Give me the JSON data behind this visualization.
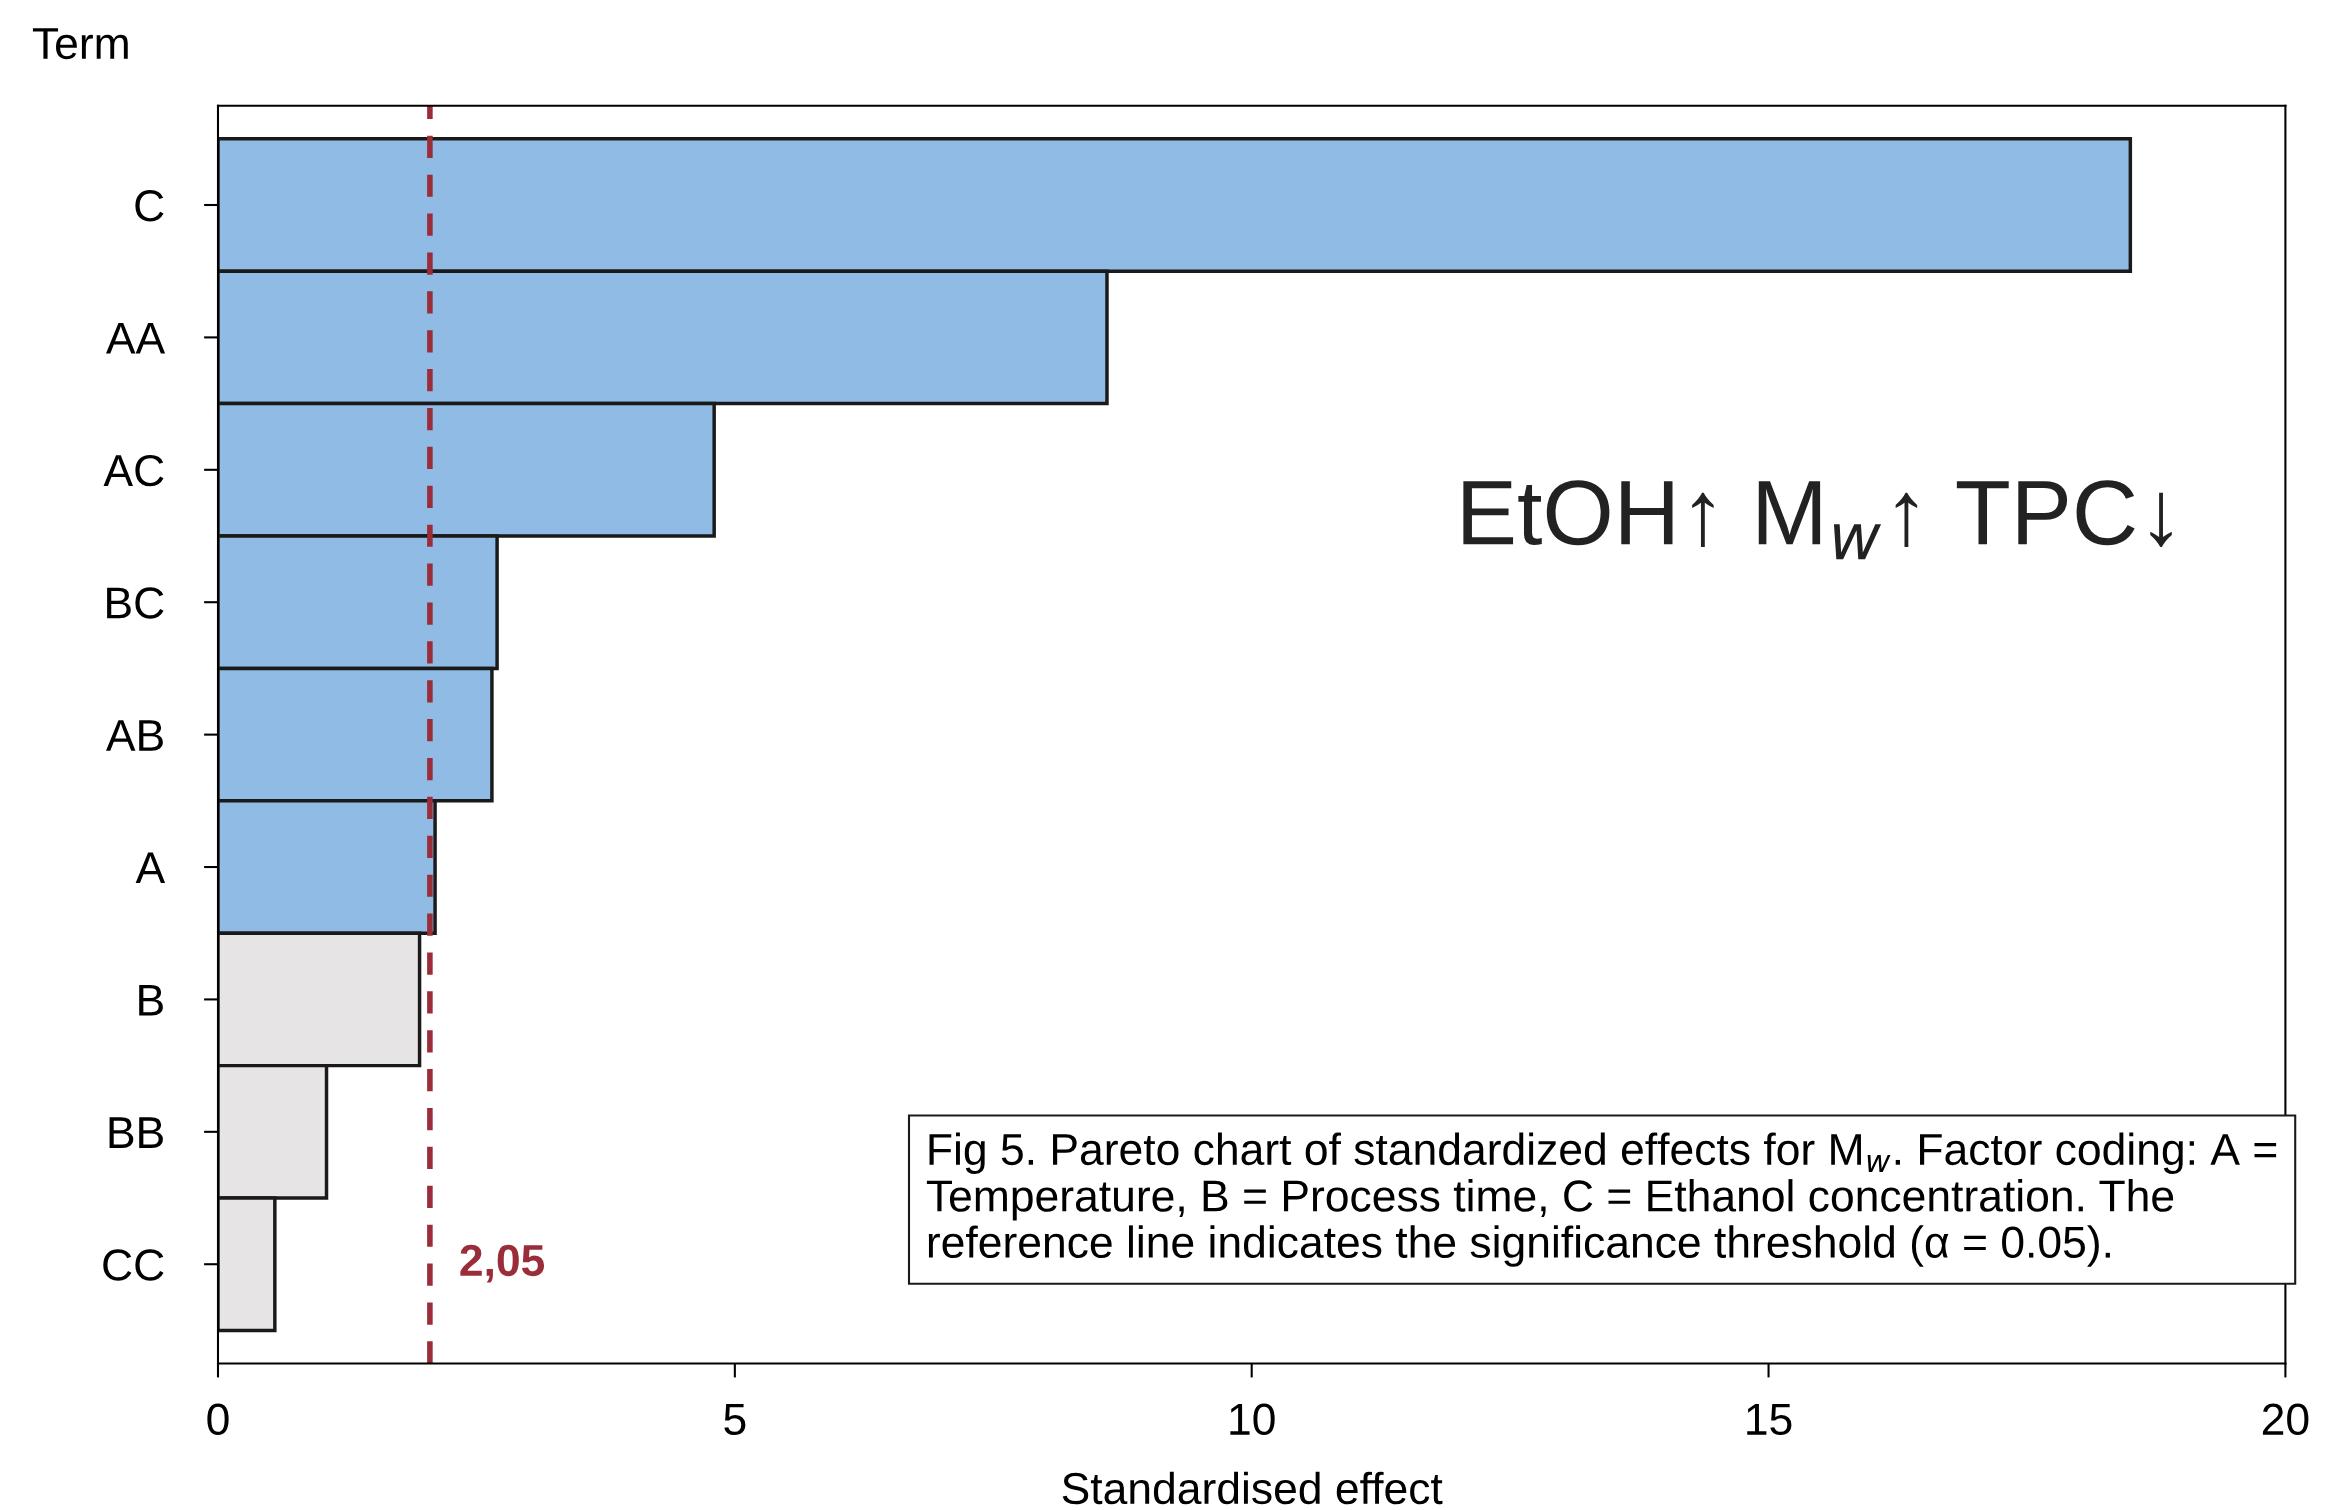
{
  "chart_data": {
    "type": "bar",
    "orientation": "horizontal",
    "ylabel": "Term",
    "xlabel": "Standardised effect",
    "categories": [
      "C",
      "AA",
      "AC",
      "BC",
      "AB",
      "A",
      "B",
      "BB",
      "CC"
    ],
    "values": [
      18.5,
      8.6,
      4.8,
      2.7,
      2.65,
      2.1,
      1.95,
      1.05,
      0.55
    ],
    "colors": [
      "#8fbbe4",
      "#8fbbe4",
      "#8fbbe4",
      "#8fbbe4",
      "#8fbbe4",
      "#8fbbe4",
      "#e6e4e5",
      "#e6e4e5",
      "#e6e4e5"
    ],
    "xlim": [
      0,
      20
    ],
    "xticks": [
      0,
      5,
      10,
      15,
      20
    ],
    "grid": false,
    "legend": false,
    "ref_lines": [
      {
        "axis": "x",
        "value": 2.05,
        "label": "2,05",
        "color": "#9b2d3a",
        "line_style": "dashed"
      }
    ],
    "annotations": [
      "EtOH↑ M$_{w}$↑ TPC↓",
      "Fig 5. Pareto chart of standardized effects for M$_{w}$. Factor coding: A = Temperature, B = Process time, C = Ethanol concentration. The reference line indicates the significance threshold (α = 0.05)."
    ]
  }
}
